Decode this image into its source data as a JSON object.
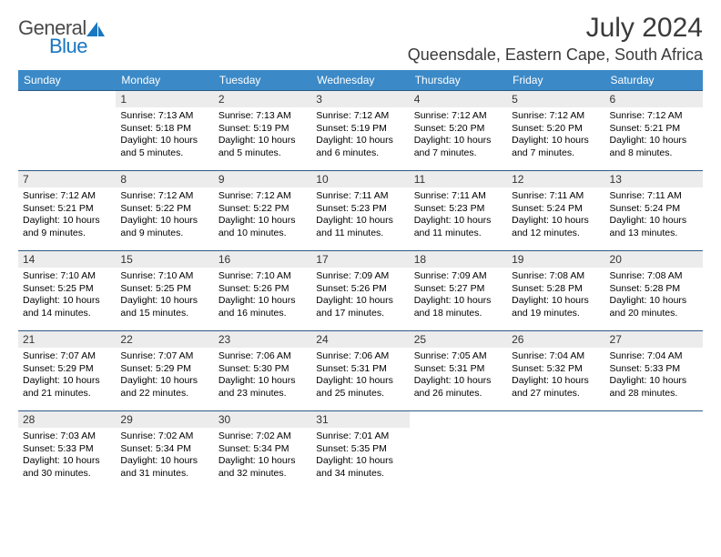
{
  "logo": {
    "text1": "General",
    "text2": "Blue"
  },
  "title": {
    "month": "July 2024",
    "location": "Queensdale, Eastern Cape, South Africa"
  },
  "colors": {
    "header_bg": "#3b89c7",
    "rule": "#2c5a88",
    "daynum_bg": "#ececec",
    "logo_blue": "#1976c1"
  },
  "weekdays": [
    "Sunday",
    "Monday",
    "Tuesday",
    "Wednesday",
    "Thursday",
    "Friday",
    "Saturday"
  ],
  "weeks": [
    [
      null,
      {
        "n": "1",
        "sr": "Sunrise: 7:13 AM",
        "ss": "Sunset: 5:18 PM",
        "d1": "Daylight: 10 hours",
        "d2": "and 5 minutes."
      },
      {
        "n": "2",
        "sr": "Sunrise: 7:13 AM",
        "ss": "Sunset: 5:19 PM",
        "d1": "Daylight: 10 hours",
        "d2": "and 5 minutes."
      },
      {
        "n": "3",
        "sr": "Sunrise: 7:12 AM",
        "ss": "Sunset: 5:19 PM",
        "d1": "Daylight: 10 hours",
        "d2": "and 6 minutes."
      },
      {
        "n": "4",
        "sr": "Sunrise: 7:12 AM",
        "ss": "Sunset: 5:20 PM",
        "d1": "Daylight: 10 hours",
        "d2": "and 7 minutes."
      },
      {
        "n": "5",
        "sr": "Sunrise: 7:12 AM",
        "ss": "Sunset: 5:20 PM",
        "d1": "Daylight: 10 hours",
        "d2": "and 7 minutes."
      },
      {
        "n": "6",
        "sr": "Sunrise: 7:12 AM",
        "ss": "Sunset: 5:21 PM",
        "d1": "Daylight: 10 hours",
        "d2": "and 8 minutes."
      }
    ],
    [
      {
        "n": "7",
        "sr": "Sunrise: 7:12 AM",
        "ss": "Sunset: 5:21 PM",
        "d1": "Daylight: 10 hours",
        "d2": "and 9 minutes."
      },
      {
        "n": "8",
        "sr": "Sunrise: 7:12 AM",
        "ss": "Sunset: 5:22 PM",
        "d1": "Daylight: 10 hours",
        "d2": "and 9 minutes."
      },
      {
        "n": "9",
        "sr": "Sunrise: 7:12 AM",
        "ss": "Sunset: 5:22 PM",
        "d1": "Daylight: 10 hours",
        "d2": "and 10 minutes."
      },
      {
        "n": "10",
        "sr": "Sunrise: 7:11 AM",
        "ss": "Sunset: 5:23 PM",
        "d1": "Daylight: 10 hours",
        "d2": "and 11 minutes."
      },
      {
        "n": "11",
        "sr": "Sunrise: 7:11 AM",
        "ss": "Sunset: 5:23 PM",
        "d1": "Daylight: 10 hours",
        "d2": "and 11 minutes."
      },
      {
        "n": "12",
        "sr": "Sunrise: 7:11 AM",
        "ss": "Sunset: 5:24 PM",
        "d1": "Daylight: 10 hours",
        "d2": "and 12 minutes."
      },
      {
        "n": "13",
        "sr": "Sunrise: 7:11 AM",
        "ss": "Sunset: 5:24 PM",
        "d1": "Daylight: 10 hours",
        "d2": "and 13 minutes."
      }
    ],
    [
      {
        "n": "14",
        "sr": "Sunrise: 7:10 AM",
        "ss": "Sunset: 5:25 PM",
        "d1": "Daylight: 10 hours",
        "d2": "and 14 minutes."
      },
      {
        "n": "15",
        "sr": "Sunrise: 7:10 AM",
        "ss": "Sunset: 5:25 PM",
        "d1": "Daylight: 10 hours",
        "d2": "and 15 minutes."
      },
      {
        "n": "16",
        "sr": "Sunrise: 7:10 AM",
        "ss": "Sunset: 5:26 PM",
        "d1": "Daylight: 10 hours",
        "d2": "and 16 minutes."
      },
      {
        "n": "17",
        "sr": "Sunrise: 7:09 AM",
        "ss": "Sunset: 5:26 PM",
        "d1": "Daylight: 10 hours",
        "d2": "and 17 minutes."
      },
      {
        "n": "18",
        "sr": "Sunrise: 7:09 AM",
        "ss": "Sunset: 5:27 PM",
        "d1": "Daylight: 10 hours",
        "d2": "and 18 minutes."
      },
      {
        "n": "19",
        "sr": "Sunrise: 7:08 AM",
        "ss": "Sunset: 5:28 PM",
        "d1": "Daylight: 10 hours",
        "d2": "and 19 minutes."
      },
      {
        "n": "20",
        "sr": "Sunrise: 7:08 AM",
        "ss": "Sunset: 5:28 PM",
        "d1": "Daylight: 10 hours",
        "d2": "and 20 minutes."
      }
    ],
    [
      {
        "n": "21",
        "sr": "Sunrise: 7:07 AM",
        "ss": "Sunset: 5:29 PM",
        "d1": "Daylight: 10 hours",
        "d2": "and 21 minutes."
      },
      {
        "n": "22",
        "sr": "Sunrise: 7:07 AM",
        "ss": "Sunset: 5:29 PM",
        "d1": "Daylight: 10 hours",
        "d2": "and 22 minutes."
      },
      {
        "n": "23",
        "sr": "Sunrise: 7:06 AM",
        "ss": "Sunset: 5:30 PM",
        "d1": "Daylight: 10 hours",
        "d2": "and 23 minutes."
      },
      {
        "n": "24",
        "sr": "Sunrise: 7:06 AM",
        "ss": "Sunset: 5:31 PM",
        "d1": "Daylight: 10 hours",
        "d2": "and 25 minutes."
      },
      {
        "n": "25",
        "sr": "Sunrise: 7:05 AM",
        "ss": "Sunset: 5:31 PM",
        "d1": "Daylight: 10 hours",
        "d2": "and 26 minutes."
      },
      {
        "n": "26",
        "sr": "Sunrise: 7:04 AM",
        "ss": "Sunset: 5:32 PM",
        "d1": "Daylight: 10 hours",
        "d2": "and 27 minutes."
      },
      {
        "n": "27",
        "sr": "Sunrise: 7:04 AM",
        "ss": "Sunset: 5:33 PM",
        "d1": "Daylight: 10 hours",
        "d2": "and 28 minutes."
      }
    ],
    [
      {
        "n": "28",
        "sr": "Sunrise: 7:03 AM",
        "ss": "Sunset: 5:33 PM",
        "d1": "Daylight: 10 hours",
        "d2": "and 30 minutes."
      },
      {
        "n": "29",
        "sr": "Sunrise: 7:02 AM",
        "ss": "Sunset: 5:34 PM",
        "d1": "Daylight: 10 hours",
        "d2": "and 31 minutes."
      },
      {
        "n": "30",
        "sr": "Sunrise: 7:02 AM",
        "ss": "Sunset: 5:34 PM",
        "d1": "Daylight: 10 hours",
        "d2": "and 32 minutes."
      },
      {
        "n": "31",
        "sr": "Sunrise: 7:01 AM",
        "ss": "Sunset: 5:35 PM",
        "d1": "Daylight: 10 hours",
        "d2": "and 34 minutes."
      },
      null,
      null,
      null
    ]
  ]
}
